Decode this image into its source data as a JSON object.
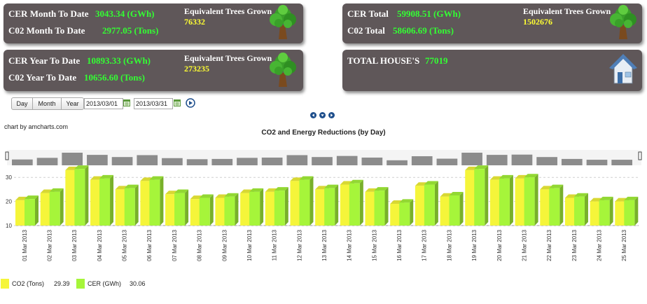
{
  "cards": {
    "month": {
      "cer_label": "CER Month To Date",
      "cer_value": "3043.34 (GWh)",
      "co2_label": "C02 Month To Date",
      "co2_value": "2977.05 (Tons)",
      "trees_label": "Equivalent Trees Grown",
      "trees_value": "76332"
    },
    "total": {
      "cer_label": "CER Total",
      "cer_value": "59908.51 (GWh)",
      "co2_label": "C02 Total",
      "co2_value": "58606.69 (Tons)",
      "trees_label": "Equivalent Trees Grown",
      "trees_value": "1502676"
    },
    "year": {
      "cer_label": "CER Year To Date",
      "cer_value": "10893.33 (GWh)",
      "co2_label": "C02 Year To Date",
      "co2_value": "10656.60 (Tons)",
      "trees_label": "Equivalent Trees Grown",
      "trees_value": "273235"
    },
    "houses": {
      "label": "TOTAL HOUSE'S",
      "value": "77019"
    }
  },
  "controls": {
    "buttons": [
      "Day",
      "Month",
      "Year"
    ],
    "date_from": "2013/03/01",
    "date_to": "2013/03/31"
  },
  "chart_credit": "chart by amcharts.com",
  "colors": {
    "card_bg": "#5f5759",
    "green_value": "#33ff33",
    "yellow_value": "#ffff33",
    "co2_bar": "#f5f53a",
    "cer_bar": "#a6f53a",
    "scroll_bar": "#8c8c8c"
  },
  "chart_data": {
    "type": "bar",
    "title": "CO2 and Energy Reductions (by Day)",
    "categories": [
      "01 Mar 2013",
      "02 Mar 2013",
      "03 Mar 2013",
      "04 Mar 2013",
      "05 Mar 2013",
      "06 Mar 2013",
      "07 Mar 2013",
      "08 Mar 2013",
      "09 Mar 2013",
      "10 Mar 2013",
      "11 Mar 2013",
      "12 Mar 2013",
      "13 Mar 2013",
      "14 Mar 2013",
      "15 Mar 2013",
      "16 Mar 2013",
      "17 Mar 2013",
      "18 Mar 2013",
      "19 Mar 2013",
      "20 Mar 2013",
      "21 Mar 2013",
      "22 Mar 2013",
      "23 Mar 2013",
      "24 Mar 2013",
      "25 Mar 2013"
    ],
    "ylim": [
      10,
      35
    ],
    "yticks": [
      "10",
      "20",
      "30"
    ],
    "series": [
      {
        "name": "CO2 (Tons)",
        "color": "#f5f53a",
        "values": [
          20.5,
          23.5,
          33,
          29,
          25,
          28.5,
          23,
          21,
          21.5,
          23.5,
          24,
          28.5,
          25,
          27,
          24,
          19,
          26.5,
          22,
          33,
          29,
          29.5,
          25,
          21.5,
          20,
          20
        ]
      },
      {
        "name": "CER (GWh)",
        "color": "#a6f53a",
        "values": [
          21,
          24,
          33.5,
          29.5,
          25.5,
          29,
          23.5,
          21.5,
          22,
          24,
          24.5,
          29,
          25.5,
          27.5,
          24.5,
          19.5,
          27,
          22.5,
          33.5,
          29.5,
          30,
          25.5,
          22,
          20.5,
          20.5
        ]
      }
    ],
    "legend": {
      "position": "bottom-left",
      "values": [
        "29.39",
        "30.06"
      ]
    }
  }
}
